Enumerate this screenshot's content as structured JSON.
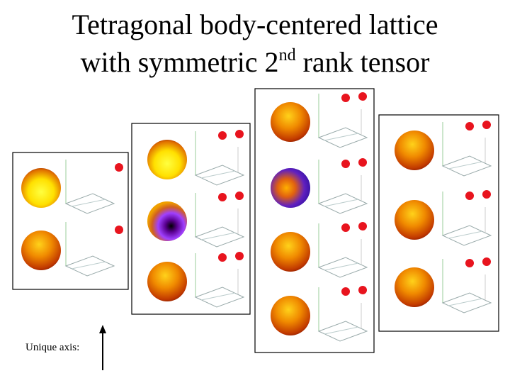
{
  "title": {
    "line1": "Tetragonal body-centered lattice",
    "line2_start": "with symmetric 2",
    "superscript": "nd",
    "line2_end": " rank tensor"
  },
  "axis_note": {
    "label": "Unique axis:"
  }
}
